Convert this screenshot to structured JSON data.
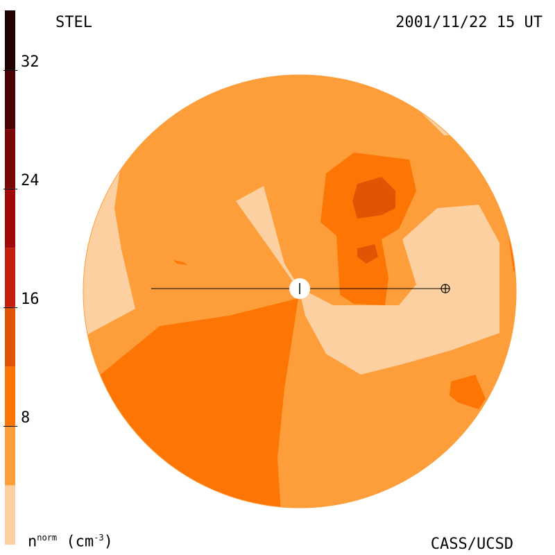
{
  "header": {
    "instrument": "STEL",
    "timestamp": "2001/11/22 15 UT"
  },
  "footer": {
    "variable_base": "n",
    "variable_sup": "norm",
    "units": "(cm",
    "units_sup": "-3",
    "units_close": ")",
    "credit": "CASS/UCSD"
  },
  "colorbar": {
    "min": 0,
    "max": 36,
    "levels": [
      {
        "from": 0,
        "to": 4,
        "color": "#fdd0a2"
      },
      {
        "from": 4,
        "to": 8,
        "color": "#fd9e3a"
      },
      {
        "from": 8,
        "to": 12,
        "color": "#fd7505"
      },
      {
        "from": 12,
        "to": 16,
        "color": "#e05404"
      },
      {
        "from": 16,
        "to": 20,
        "color": "#c41e0f"
      },
      {
        "from": 20,
        "to": 24,
        "color": "#a10a0a"
      },
      {
        "from": 24,
        "to": 28,
        "color": "#7a0606"
      },
      {
        "from": 28,
        "to": 32,
        "color": "#4a0303"
      },
      {
        "from": 32,
        "to": 36,
        "color": "#200101"
      }
    ],
    "ticks": [
      "8",
      "16",
      "24",
      "32"
    ],
    "tick_values": [
      8,
      16,
      24,
      32
    ]
  },
  "map": {
    "background_color": "#fd9e3a",
    "observer_symbol": "sun",
    "earth_symbol": "earth"
  }
}
